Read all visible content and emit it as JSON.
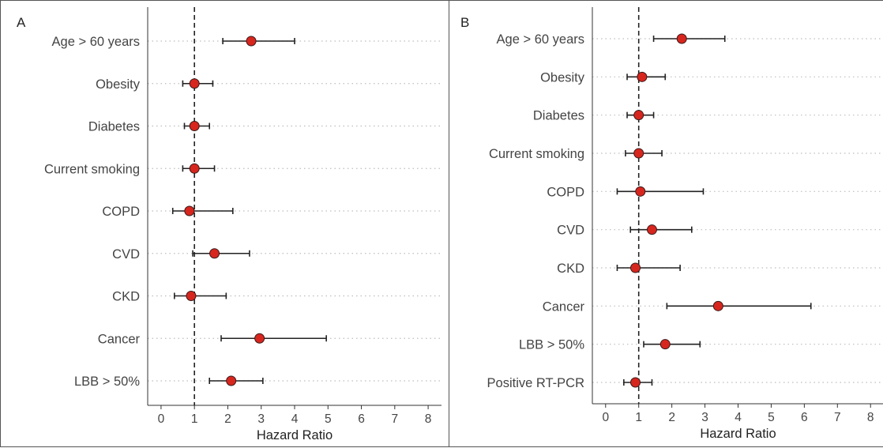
{
  "colors": {
    "point": "#d7261e",
    "point_stroke": "#3a1a1a",
    "whisker": "#222222",
    "refline": "#222222",
    "grid": "#bdbdbd",
    "text": "#444444"
  },
  "panels": [
    {
      "letter": "A"
    },
    {
      "letter": "B"
    }
  ],
  "chart_data": [
    {
      "type": "forest",
      "xlabel": "Hazard Ratio",
      "xlim": [
        -0.4,
        8.4
      ],
      "xticks": [
        0,
        1,
        2,
        3,
        4,
        5,
        6,
        7,
        8
      ],
      "reference_line": 1,
      "grid": "horizontal dotted",
      "categories": [
        "Age > 60 years",
        "Obesity",
        "Diabetes",
        "Current smoking",
        "COPD",
        "CVD",
        "CKD",
        "Cancer",
        "LBB > 50%"
      ],
      "estimate": [
        2.7,
        1.0,
        1.0,
        1.0,
        0.85,
        1.6,
        0.9,
        2.95,
        2.1
      ],
      "lower": [
        1.85,
        0.65,
        0.7,
        0.65,
        0.35,
        0.95,
        0.4,
        1.8,
        1.45
      ],
      "upper": [
        4.0,
        1.55,
        1.45,
        1.6,
        2.15,
        2.65,
        1.95,
        4.95,
        3.05
      ]
    },
    {
      "type": "forest",
      "xlabel": "Hazard Ratio",
      "xlim": [
        -0.4,
        8.4
      ],
      "xticks": [
        0,
        1,
        2,
        3,
        4,
        5,
        6,
        7,
        8
      ],
      "reference_line": 1,
      "grid": "horizontal dotted",
      "categories": [
        "Age > 60 years",
        "Obesity",
        "Diabetes",
        "Current smoking",
        "COPD",
        "CVD",
        "CKD",
        "Cancer",
        "LBB > 50%",
        "Positive RT-PCR"
      ],
      "estimate": [
        2.3,
        1.1,
        1.0,
        1.0,
        1.05,
        1.4,
        0.9,
        3.4,
        1.8,
        0.9
      ],
      "lower": [
        1.45,
        0.65,
        0.65,
        0.6,
        0.35,
        0.75,
        0.35,
        1.85,
        1.15,
        0.55
      ],
      "upper": [
        3.6,
        1.8,
        1.45,
        1.7,
        2.95,
        2.6,
        2.25,
        6.2,
        2.85,
        1.4
      ]
    }
  ]
}
